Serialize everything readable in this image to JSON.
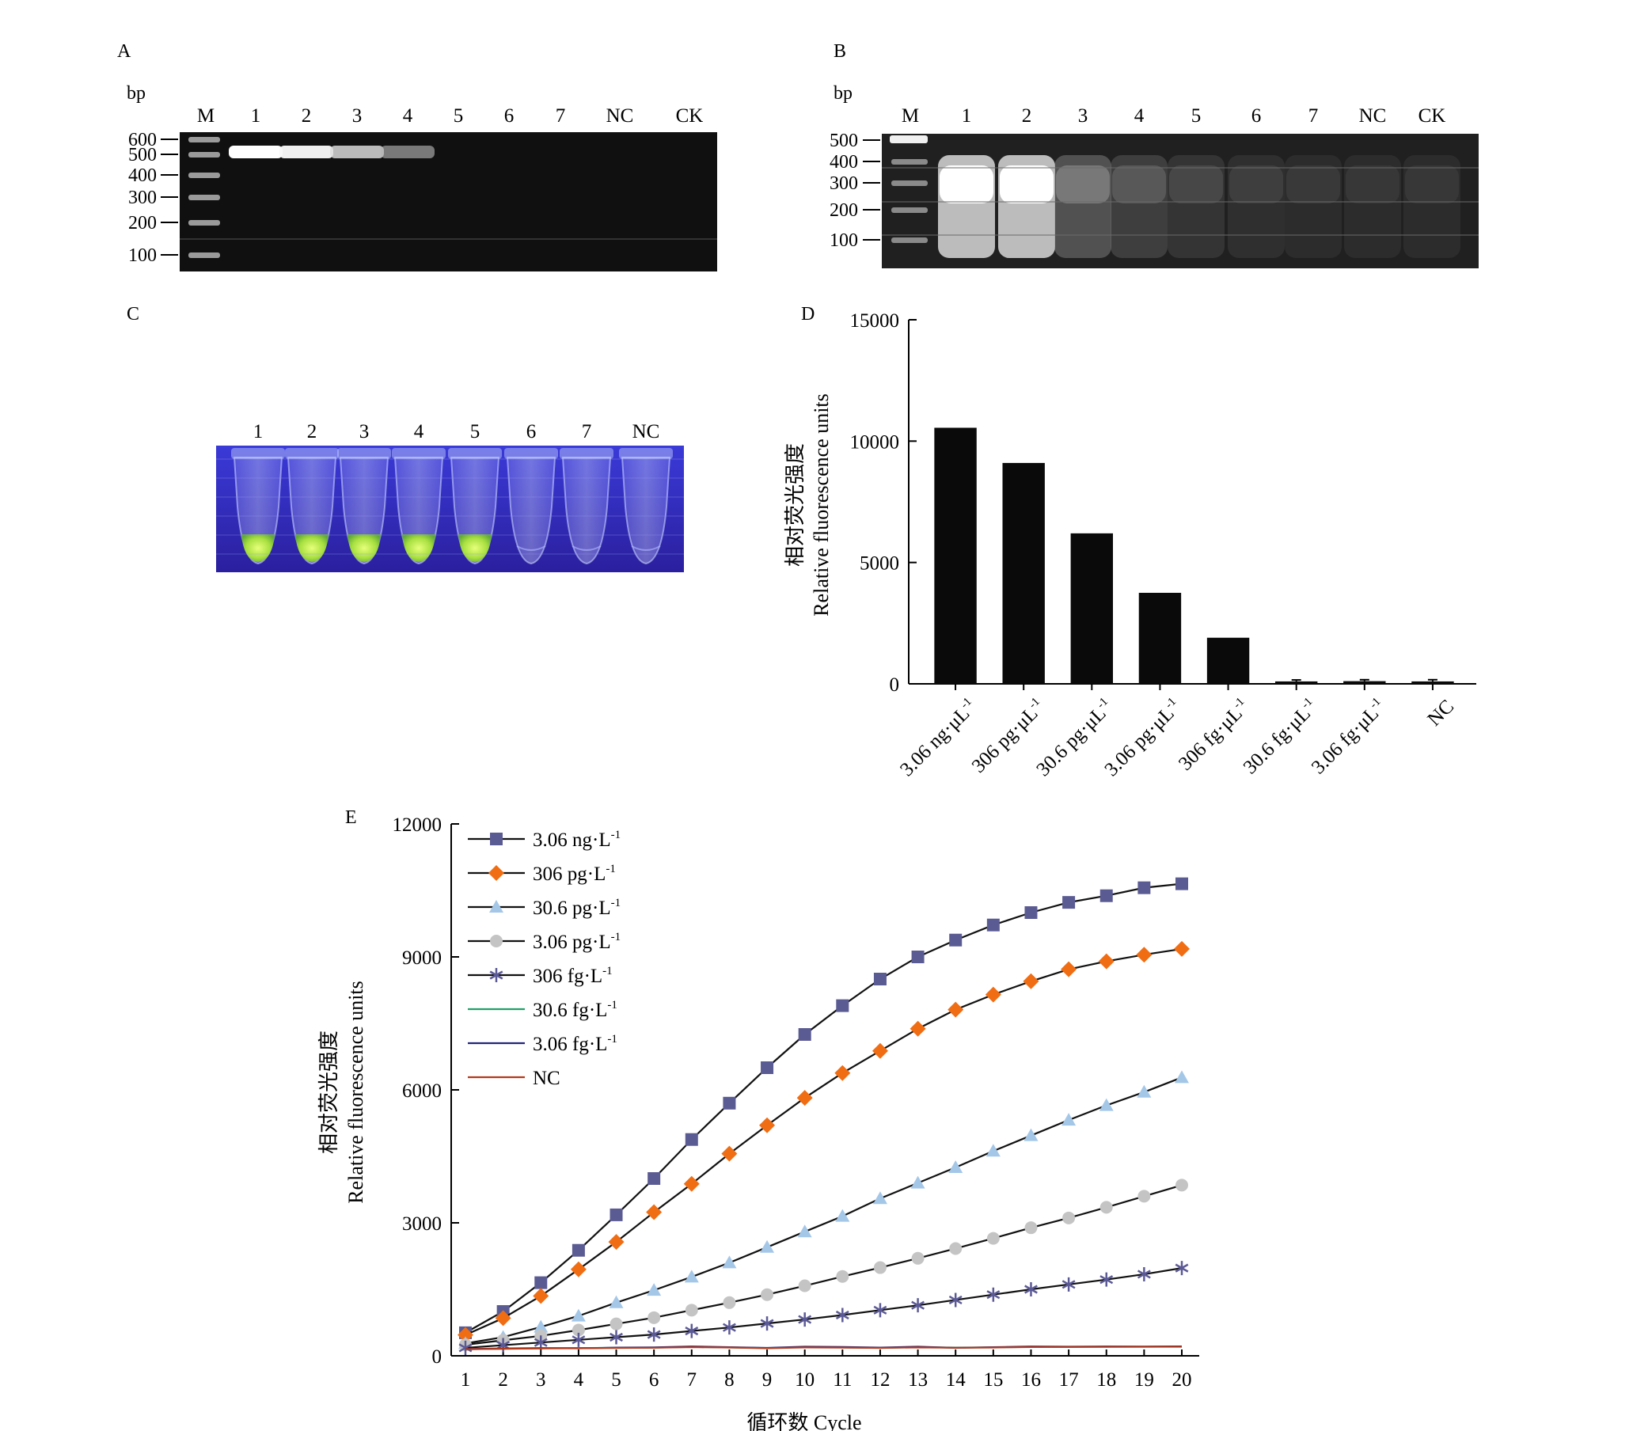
{
  "panels": {
    "A": {
      "letter": "A",
      "unit": "bp",
      "lane_labels": [
        "M",
        "1",
        "2",
        "3",
        "4",
        "5",
        "6",
        "7",
        "NC",
        "CK"
      ],
      "marker_labels": [
        "600",
        "500",
        "400",
        "300",
        "200",
        "100"
      ],
      "band_intensity": [
        0,
        1.0,
        0.95,
        0.75,
        0.45,
        0,
        0,
        0,
        0,
        0
      ]
    },
    "B": {
      "letter": "B",
      "unit": "bp",
      "lane_labels": [
        "M",
        "1",
        "2",
        "3",
        "4",
        "5",
        "6",
        "7",
        "NC",
        "CK"
      ],
      "marker_labels": [
        "500",
        "400",
        "300",
        "200",
        "100"
      ],
      "band_intensity": [
        0,
        1.0,
        1.0,
        0.45,
        0.3,
        0.2,
        0.15,
        0.12,
        0.1,
        0.1
      ]
    },
    "C": {
      "letter": "C",
      "tube_labels": [
        "1",
        "2",
        "3",
        "4",
        "5",
        "6",
        "7",
        "NC"
      ],
      "tube_fluorescence": [
        1,
        1,
        1,
        1,
        1,
        0,
        0,
        0
      ]
    },
    "D": {
      "letter": "D"
    },
    "E": {
      "letter": "E"
    }
  },
  "chart_data": [
    {
      "panel": "D",
      "type": "bar",
      "categories": [
        "3.06 ng·μL-1",
        "306 pg·μL-1",
        "30.6 pg·μL-1",
        "3.06 pg·μL-1",
        "306 fg·μL-1",
        "30.6 fg·μL-1",
        "3.06 fg·μL-1",
        "NC"
      ],
      "category_parts": [
        {
          "base": "3.06 ng·μL",
          "sup": "-1"
        },
        {
          "base": "306 pg·μL",
          "sup": "-1"
        },
        {
          "base": "30.6 pg·μL",
          "sup": "-1"
        },
        {
          "base": "3.06 pg·μL",
          "sup": "-1"
        },
        {
          "base": "306 fg·μL",
          "sup": "-1"
        },
        {
          "base": "30.6 fg·μL",
          "sup": "-1"
        },
        {
          "base": "3.06 fg·μL",
          "sup": "-1"
        },
        {
          "base": "NC",
          "sup": ""
        }
      ],
      "values": [
        10550,
        9100,
        6200,
        3750,
        1900,
        100,
        110,
        100
      ],
      "error": [
        0,
        0,
        0,
        0,
        0,
        60,
        60,
        70
      ],
      "ylabel_cn": "相对荧光强度",
      "ylabel_en": "Relative fluorescence units",
      "ylim": [
        0,
        15000
      ],
      "yticks": [
        0,
        5000,
        10000,
        15000
      ],
      "grid": false,
      "bar_color": "#0a0a0a"
    },
    {
      "panel": "E",
      "type": "line",
      "x": [
        1,
        2,
        3,
        4,
        5,
        6,
        7,
        8,
        9,
        10,
        11,
        12,
        13,
        14,
        15,
        16,
        17,
        18,
        19,
        20
      ],
      "xlabel": "循环数 Cycle",
      "ylabel_cn": "相对荧光强度",
      "ylabel_en": "Relative fluorescence units",
      "ylim": [
        0,
        12000
      ],
      "yticks": [
        0,
        3000,
        6000,
        9000,
        12000
      ],
      "grid": false,
      "legend_position": "top-left",
      "series": [
        {
          "name": "3.06 ng·L-1",
          "label_base": "3.06 ng·L",
          "label_sup": "-1",
          "marker": "square",
          "color": "#5b5b93",
          "values": [
            520,
            1000,
            1650,
            2380,
            3180,
            4000,
            4880,
            5700,
            6500,
            7250,
            7900,
            8500,
            9000,
            9380,
            9720,
            10000,
            10230,
            10380,
            10560,
            10650
          ]
        },
        {
          "name": "306 pg·L-1",
          "label_base": "306 pg·L",
          "label_sup": "-1",
          "marker": "diamond",
          "color": "#f06d13",
          "values": [
            470,
            850,
            1350,
            1950,
            2570,
            3240,
            3880,
            4560,
            5200,
            5820,
            6380,
            6880,
            7380,
            7810,
            8150,
            8450,
            8720,
            8900,
            9050,
            9180
          ]
        },
        {
          "name": "30.6 pg·L-1",
          "label_base": "30.6 pg·L",
          "label_sup": "-1",
          "marker": "triangle",
          "color": "#a4c7e8",
          "values": [
            280,
            420,
            650,
            900,
            1200,
            1480,
            1780,
            2100,
            2450,
            2800,
            3150,
            3550,
            3900,
            4250,
            4620,
            4970,
            5320,
            5650,
            5950,
            6280
          ]
        },
        {
          "name": "3.06 pg·L-1",
          "label_base": "3.06 pg·L",
          "label_sup": "-1",
          "marker": "circle",
          "color": "#c4c4c4",
          "values": [
            250,
            350,
            450,
            580,
            720,
            860,
            1030,
            1200,
            1380,
            1580,
            1790,
            1990,
            2200,
            2420,
            2650,
            2890,
            3110,
            3350,
            3600,
            3850
          ]
        },
        {
          "name": "306 fg·L-1",
          "label_base": "306 fg·L",
          "label_sup": "-1",
          "marker": "star",
          "color": "#5c5a96",
          "values": [
            180,
            240,
            300,
            360,
            420,
            480,
            560,
            640,
            730,
            820,
            920,
            1030,
            1140,
            1260,
            1380,
            1500,
            1610,
            1720,
            1840,
            1980
          ]
        },
        {
          "name": "30.6 fg·L-1",
          "label_base": "30.6 fg·L",
          "label_sup": "-1",
          "marker": "none",
          "color": "#22a06b",
          "values": [
            150,
            160,
            170,
            175,
            180,
            185,
            200,
            190,
            175,
            195,
            190,
            180,
            195,
            185,
            190,
            200,
            200,
            205,
            205,
            210
          ]
        },
        {
          "name": "3.06 fg·L-1",
          "label_base": "3.06 fg·L",
          "label_sup": "-1",
          "marker": "none",
          "color": "#24247a",
          "values": [
            155,
            165,
            175,
            170,
            185,
            190,
            210,
            195,
            180,
            205,
            200,
            185,
            205,
            180,
            195,
            210,
            205,
            210,
            208,
            212
          ]
        },
        {
          "name": "NC",
          "label_base": "NC",
          "label_sup": "",
          "marker": "none",
          "color": "#b23a1c",
          "values": [
            150,
            158,
            168,
            172,
            178,
            182,
            195,
            188,
            172,
            190,
            185,
            178,
            190,
            182,
            188,
            198,
            200,
            202,
            204,
            206
          ]
        }
      ]
    }
  ]
}
